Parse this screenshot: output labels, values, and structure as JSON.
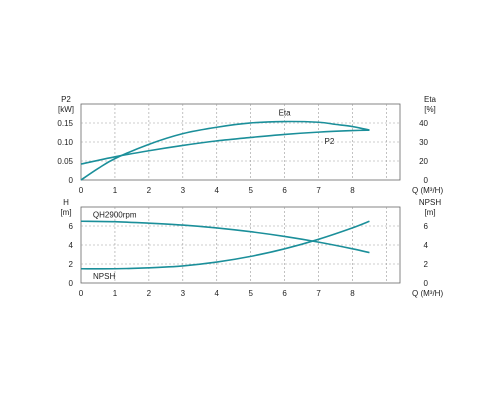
{
  "colors": {
    "curve": "#1b8f9a",
    "grid": "#9a9a9a",
    "frame": "#666666",
    "text": "#222222"
  },
  "chart_data": [
    {
      "type": "line",
      "xlabel": "Q (M³/H)",
      "xlim": [
        0,
        9.4
      ],
      "xticks": [
        "0",
        "1",
        "2",
        "3",
        "4",
        "5",
        "6",
        "7",
        "8"
      ],
      "left_axis": {
        "label_top": "P2",
        "label_unit": "[kW]",
        "ylim": [
          0,
          0.2
        ],
        "ticks": [
          "0",
          "0.05",
          "0.10",
          "0.15"
        ]
      },
      "right_axis": {
        "label_top": "Eta",
        "label_unit": "[%]",
        "ylim": [
          0,
          53.3
        ],
        "ticks": [
          "0",
          "20",
          "30",
          "40"
        ]
      },
      "grid": true,
      "series": [
        {
          "name": "Eta",
          "axis": "right",
          "x": [
            0,
            0.5,
            1,
            2,
            3,
            4,
            5,
            6,
            7,
            7.5,
            8,
            8.5
          ],
          "y": [
            0,
            8,
            15,
            25,
            32.5,
            37,
            40,
            41,
            40.5,
            39,
            37.5,
            35
          ]
        },
        {
          "name": "P2",
          "axis": "left",
          "x": [
            0,
            1,
            2,
            3,
            4,
            5,
            6,
            7,
            8,
            8.5
          ],
          "y": [
            0.042,
            0.061,
            0.077,
            0.091,
            0.103,
            0.112,
            0.12,
            0.126,
            0.13,
            0.131
          ]
        }
      ]
    },
    {
      "type": "line",
      "xlabel": "Q (M³/H)",
      "xlim": [
        0,
        9.4
      ],
      "xticks": [
        "0",
        "1",
        "2",
        "3",
        "4",
        "5",
        "6",
        "7",
        "8"
      ],
      "left_axis": {
        "label_top": "H",
        "label_unit": "[m]",
        "ylim": [
          0,
          8
        ],
        "ticks": [
          "0",
          "2",
          "4",
          "6"
        ]
      },
      "right_axis": {
        "label_top": "NPSH",
        "label_unit": "[m]",
        "ylim": [
          0,
          8
        ],
        "ticks": [
          "0",
          "2",
          "4",
          "6"
        ]
      },
      "grid": true,
      "series": [
        {
          "name": "QH2900rpm",
          "axis": "left",
          "x": [
            0,
            1,
            2,
            3,
            4,
            5,
            6,
            7,
            8,
            8.5
          ],
          "y": [
            6.5,
            6.45,
            6.3,
            6.1,
            5.8,
            5.4,
            4.9,
            4.3,
            3.6,
            3.2
          ]
        },
        {
          "name": "NPSH",
          "axis": "right",
          "x": [
            0,
            1,
            2,
            3,
            4,
            5,
            6,
            7,
            8,
            8.5
          ],
          "y": [
            1.5,
            1.5,
            1.6,
            1.8,
            2.2,
            2.8,
            3.6,
            4.6,
            5.8,
            6.5
          ]
        }
      ]
    }
  ]
}
